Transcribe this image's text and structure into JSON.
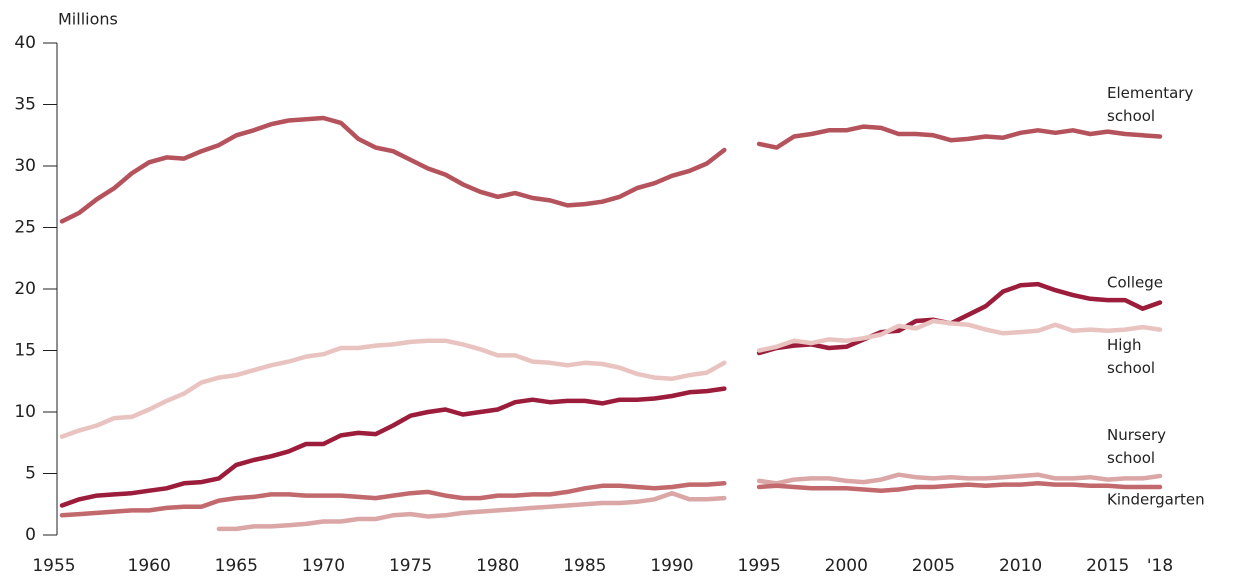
{
  "chart_data": {
    "type": "line",
    "y_label": "Millions",
    "x": [
      1955,
      1956,
      1957,
      1958,
      1959,
      1960,
      1961,
      1962,
      1963,
      1964,
      1965,
      1966,
      1967,
      1968,
      1969,
      1970,
      1971,
      1972,
      1973,
      1974,
      1975,
      1976,
      1977,
      1978,
      1979,
      1980,
      1981,
      1982,
      1983,
      1984,
      1985,
      1986,
      1987,
      1988,
      1989,
      1990,
      1991,
      1992,
      1993,
      1994,
      1995,
      1996,
      1997,
      1998,
      1999,
      2000,
      2001,
      2002,
      2003,
      2004,
      2005,
      2006,
      2007,
      2008,
      2009,
      2010,
      2011,
      2012,
      2013,
      2014,
      2015,
      2016,
      2017,
      2018
    ],
    "xlim": [
      1955,
      2018
    ],
    "xticks": [
      1955,
      1960,
      1965,
      1970,
      1975,
      1980,
      1985,
      1990,
      1995,
      2000,
      2005,
      2010,
      2015,
      {
        "value": 2018,
        "label": "'18"
      }
    ],
    "ylim": [
      0,
      40
    ],
    "yticks": [
      0,
      5,
      10,
      15,
      20,
      25,
      30,
      35,
      40
    ],
    "grid": false,
    "series": [
      {
        "name": "Elementary school",
        "color": "#b5535d",
        "values": [
          25.5,
          26.2,
          27.3,
          28.2,
          29.4,
          30.3,
          30.7,
          30.6,
          31.2,
          31.7,
          32.5,
          32.9,
          33.4,
          33.7,
          33.8,
          33.9,
          33.5,
          32.2,
          31.5,
          31.2,
          30.5,
          29.8,
          29.3,
          28.5,
          27.9,
          27.5,
          27.8,
          27.4,
          27.2,
          26.8,
          26.9,
          27.1,
          27.5,
          28.2,
          28.6,
          29.2,
          29.6,
          30.2,
          31.3,
          null,
          31.8,
          31.5,
          32.4,
          32.6,
          32.9,
          32.9,
          33.2,
          33.1,
          32.6,
          32.6,
          32.5,
          32.1,
          32.2,
          32.4,
          32.3,
          32.7,
          32.9,
          32.7,
          32.9,
          32.6,
          32.8,
          32.6,
          32.5,
          32.4
        ]
      },
      {
        "name": "College",
        "color": "#9b1c3b",
        "values": [
          2.4,
          2.9,
          3.2,
          3.3,
          3.4,
          3.6,
          3.8,
          4.2,
          4.3,
          4.6,
          5.7,
          6.1,
          6.4,
          6.8,
          7.4,
          7.4,
          8.1,
          8.3,
          8.2,
          8.9,
          9.7,
          10.0,
          10.2,
          9.8,
          10.0,
          10.2,
          10.8,
          11.0,
          10.8,
          10.9,
          10.9,
          10.7,
          11.0,
          11.0,
          11.1,
          11.3,
          11.6,
          11.7,
          11.9,
          null,
          14.8,
          15.2,
          15.4,
          15.5,
          15.2,
          15.3,
          15.9,
          16.5,
          16.6,
          17.4,
          17.5,
          17.2,
          17.9,
          18.6,
          19.8,
          20.3,
          20.4,
          19.9,
          19.5,
          19.2,
          19.1,
          19.1,
          18.4,
          18.9
        ]
      },
      {
        "name": "High school",
        "color": "#e9c3c0",
        "values": [
          8.0,
          8.5,
          8.9,
          9.5,
          9.6,
          10.2,
          10.9,
          11.5,
          12.4,
          12.8,
          13.0,
          13.4,
          13.8,
          14.1,
          14.5,
          14.7,
          15.2,
          15.2,
          15.4,
          15.5,
          15.7,
          15.8,
          15.8,
          15.5,
          15.1,
          14.6,
          14.6,
          14.1,
          14.0,
          13.8,
          14.0,
          13.9,
          13.6,
          13.1,
          12.8,
          12.7,
          13.0,
          13.2,
          14.0,
          null,
          15.0,
          15.3,
          15.8,
          15.6,
          15.9,
          15.8,
          16.0,
          16.3,
          17.0,
          16.8,
          17.4,
          17.2,
          17.1,
          16.7,
          16.4,
          16.5,
          16.6,
          17.1,
          16.6,
          16.7,
          16.6,
          16.7,
          16.9,
          16.7
        ]
      },
      {
        "name": "Nursery school",
        "color": "#dba6a6",
        "values": [
          null,
          null,
          null,
          null,
          null,
          null,
          null,
          null,
          null,
          0.5,
          0.5,
          0.7,
          0.7,
          0.8,
          0.9,
          1.1,
          1.1,
          1.3,
          1.3,
          1.6,
          1.7,
          1.5,
          1.6,
          1.8,
          1.9,
          2.0,
          2.1,
          2.2,
          2.3,
          2.4,
          2.5,
          2.6,
          2.6,
          2.7,
          2.9,
          3.4,
          2.9,
          2.9,
          3.0,
          null,
          4.4,
          4.2,
          4.5,
          4.6,
          4.6,
          4.4,
          4.3,
          4.5,
          4.9,
          4.7,
          4.6,
          4.7,
          4.6,
          4.6,
          4.7,
          4.8,
          4.9,
          4.6,
          4.6,
          4.7,
          4.5,
          4.6,
          4.6,
          4.8
        ]
      },
      {
        "name": "Kindergarten",
        "color": "#c2696e",
        "values": [
          1.6,
          1.7,
          1.8,
          1.9,
          2.0,
          2.0,
          2.2,
          2.3,
          2.3,
          2.8,
          3.0,
          3.1,
          3.3,
          3.3,
          3.2,
          3.2,
          3.2,
          3.1,
          3.0,
          3.2,
          3.4,
          3.5,
          3.2,
          3.0,
          3.0,
          3.2,
          3.2,
          3.3,
          3.3,
          3.5,
          3.8,
          4.0,
          4.0,
          3.9,
          3.8,
          3.9,
          4.1,
          4.1,
          4.2,
          null,
          3.9,
          4.0,
          3.9,
          3.8,
          3.8,
          3.8,
          3.7,
          3.6,
          3.7,
          3.9,
          3.9,
          4.0,
          4.1,
          4.0,
          4.1,
          4.1,
          4.2,
          4.1,
          4.1,
          4.0,
          4.0,
          3.9,
          3.9,
          3.9
        ]
      }
    ]
  }
}
